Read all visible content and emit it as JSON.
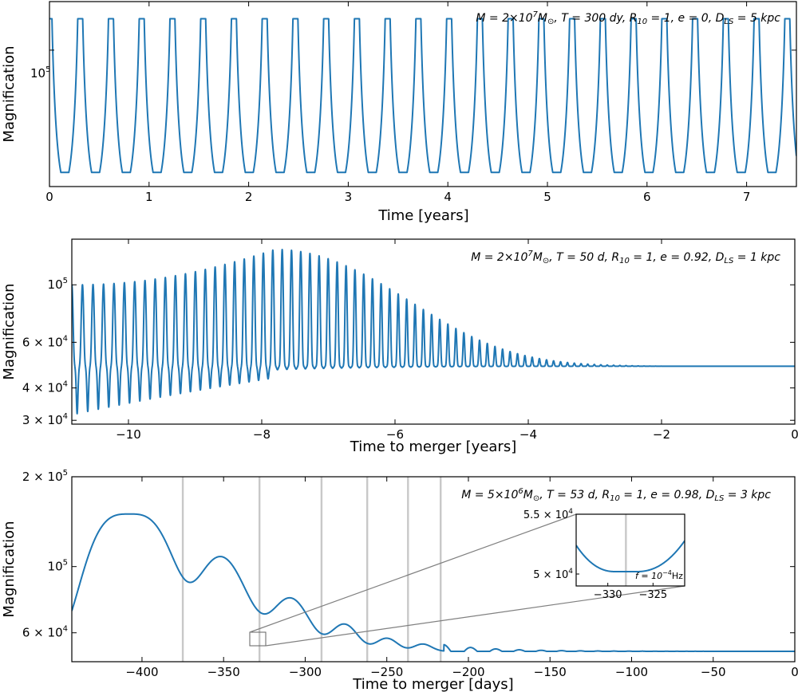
{
  "colors": {
    "line": "#1f77b4",
    "marker_lines": "#c8c8c8",
    "zoom_lines": "#808080"
  },
  "chart_data": [
    {
      "type": "line",
      "panel": "top",
      "annotation": "M = 2×10⁷M⊙, T = 300 dy, R₁₀ = 1, e = 0, D_LS = 5 kpc",
      "annotation_parts": {
        "mass": "M = 2×10",
        "mass_exp": "7",
        "mass_unit": "M",
        "mass_sub": "⊙",
        "rest": ", T = 300 dy, R",
        "r_sub": "10",
        "rest2": " = 1, e = 0, D",
        "d_sub": "LS",
        "rest3": " = 5 kpc"
      },
      "xlabel": "Time [years]",
      "ylabel": "Magnification",
      "xlim": [
        0,
        7.5
      ],
      "ylim": [
        32000,
        150000
      ],
      "yscale": "log",
      "xticks": [
        0,
        1,
        2,
        3,
        4,
        5,
        6,
        7
      ],
      "xtick_labels": [
        "0",
        "1",
        "2",
        "3",
        "4",
        "5",
        "6",
        "7"
      ],
      "yticks": [
        100000
      ],
      "ytick_labels": [
        "10",
        "5"
      ],
      "series": [
        {
          "period_years": 0.3087,
          "min": 36000,
          "peak": 130000,
          "start_value": 130000
        }
      ]
    },
    {
      "type": "line",
      "panel": "middle",
      "annotation_parts": {
        "mass": "M = 2×10",
        "mass_exp": "7",
        "mass_unit": "M",
        "mass_sub": "⊙",
        "rest": ", T = 50 d, R",
        "r_sub": "10",
        "rest2": " = 1, e = 0.92, D",
        "d_sub": "LS",
        "rest3": " = 1 kpc"
      },
      "xlabel": "Time to merger [years]",
      "ylabel": "Magnification",
      "xlim": [
        -10.85,
        0
      ],
      "ylim": [
        29000,
        150000
      ],
      "yscale": "log",
      "xticks": [
        -10,
        -8,
        -6,
        -4,
        -2,
        0
      ],
      "xtick_labels": [
        "−10",
        "−8",
        "−6",
        "−4",
        "−2",
        "0"
      ],
      "ytick_labels": [
        {
          "value": 100000,
          "mant": "10",
          "exp": "5"
        },
        {
          "value": 60000,
          "mant": "6 × 10",
          "exp": "4"
        },
        {
          "value": 40000,
          "mant": "4 × 10",
          "exp": "4"
        },
        {
          "value": 30000,
          "mant": "3 × 10",
          "exp": "4"
        }
      ],
      "series": [
        {
          "baseline": 48500,
          "peak_start": 100000,
          "peak_max": 137000,
          "peak_time": -7.8,
          "trough_start": 31500,
          "oscillation_end": -2.5
        }
      ]
    },
    {
      "type": "line",
      "panel": "bottom",
      "annotation_parts": {
        "mass": "M = 5×10",
        "mass_exp": "6",
        "mass_unit": "M",
        "mass_sub": "⊙",
        "rest": ", T = 53 d, R",
        "r_sub": "10",
        "rest2": " = 1, e = 0.98, D",
        "d_sub": "LS",
        "rest3": " = 3 kpc"
      },
      "xlabel": "Time to merger [days]",
      "ylabel": "Magnification",
      "xlim": [
        -443,
        0
      ],
      "ylim": [
        48000,
        200000
      ],
      "yscale": "log",
      "xticks": [
        -400,
        -350,
        -300,
        -250,
        -200,
        -150,
        -100,
        -50,
        0
      ],
      "xtick_labels": [
        "−400",
        "−350",
        "−300",
        "−250",
        "−200",
        "−150",
        "−100",
        "−50",
        "0"
      ],
      "ytick_labels": [
        {
          "value": 200000,
          "mant": "2 × 10",
          "exp": "5"
        },
        {
          "value": 100000,
          "mant": "10",
          "exp": "5"
        },
        {
          "value": 60000,
          "mant": "6 × 10",
          "exp": "4"
        }
      ],
      "series": [
        {
          "baseline": 52000,
          "peaks": [
            [
              -408,
              150000
            ],
            [
              -352,
              108000
            ],
            [
              -309,
              78000
            ],
            [
              -276,
              64000
            ],
            [
              -250,
              57500
            ],
            [
              -228,
              55000
            ]
          ]
        }
      ],
      "vertical_lines_x": [
        -375,
        -328,
        -290,
        -262,
        -237,
        -217
      ],
      "inset": {
        "xlim": [
          -333.5,
          -321.5
        ],
        "ylim": [
          49000,
          55000
        ],
        "xtick_labels": [
          "−330",
          "−325"
        ],
        "xticks": [
          -330,
          -325
        ],
        "ytick_labels": [
          {
            "value": 55000,
            "mant": "5.5 × 10",
            "exp": "4"
          },
          {
            "value": 50000,
            "mant": "5 × 10",
            "exp": "4"
          }
        ],
        "marker_x": -328,
        "label_parts": {
          "f": "f = 10",
          "exp": "−4",
          "unit": "Hz"
        }
      }
    }
  ]
}
